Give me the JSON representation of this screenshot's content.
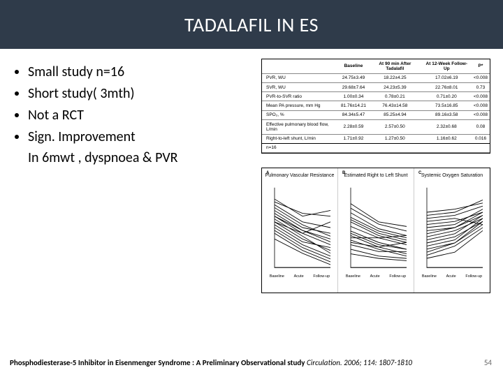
{
  "title": "TADALAFIL IN ES",
  "bullets": {
    "b0": "Small study n=16",
    "b1": "Short study( 3mth)",
    "b2": "Not a RCT",
    "b3": "Sign. Improvement",
    "indent": "In  6mwt , dyspnoea  & PVR"
  },
  "table": {
    "headers": {
      "h0": "",
      "h1": "Baseline",
      "h2": "At 90 min After Tadalafil",
      "h3": "At 12-Week Follow-Up",
      "h4": "P*"
    },
    "rows": {
      "r0": {
        "label": "PVR, WU",
        "c1": "24.75±3.49",
        "c2": "18.22±4.25",
        "c3": "17.02±6.19",
        "c4": "<0.008"
      },
      "r1": {
        "label": "SVR, WU",
        "c1": "29.68±7.64",
        "c2": "24.23±5.39",
        "c3": "22.76±8.01",
        "c4": "0.73"
      },
      "r2": {
        "label": "PVR-to-SVR ratio",
        "c1": "1.00±0.34",
        "c2": "0.78±0.21",
        "c3": "0.71±0.20",
        "c4": "<0.008"
      },
      "r3": {
        "label": "Mean PA pressure, mm Hg",
        "c1": "81.76±14.21",
        "c2": "76.43±14.58",
        "c3": "73.5±16.85",
        "c4": "<0.008"
      },
      "r4": {
        "label": "SPO₂, %",
        "c1": "84.34±5.47",
        "c2": "85.25±4.94",
        "c3": "89.16±3.58",
        "c4": "<0.008"
      },
      "r5": {
        "label": "Effective pulmonary blood flow, L/min",
        "c1": "2.28±0.59",
        "c2": "2.57±0.50",
        "c3": "2.32±0.68",
        "c4": "0.08"
      },
      "r6": {
        "label": "Right-to-left shunt, L/min",
        "c1": "1.71±0.92",
        "c2": "1.27±0.50",
        "c3": "1.16±0.62",
        "c4": "0.016"
      },
      "r7": {
        "label": "n=16",
        "c1": "",
        "c2": "",
        "c3": "",
        "c4": ""
      }
    }
  },
  "charts": {
    "a": {
      "letter": "A",
      "title": "Pulmonary Vascular Resistance",
      "ylabel": "PVR WU",
      "xlabels": {
        "x0": "Baseline",
        "x1": "Acute",
        "x2": "Follow-up"
      },
      "ylim": [
        8,
        36
      ],
      "lines": [
        [
          30,
          24,
          22
        ],
        [
          28,
          22,
          20
        ],
        [
          32,
          26,
          28
        ],
        [
          26,
          20,
          16
        ],
        [
          24,
          18,
          14
        ],
        [
          22,
          16,
          12
        ],
        [
          20,
          14,
          10
        ],
        [
          26,
          21,
          18
        ],
        [
          23,
          17,
          15
        ],
        [
          25,
          19,
          13
        ],
        [
          27,
          21,
          17
        ],
        [
          29,
          23,
          19
        ],
        [
          21,
          15,
          11
        ],
        [
          24,
          20,
          24
        ],
        [
          31,
          27,
          26
        ],
        [
          18,
          13,
          9
        ]
      ],
      "line_color": "#000000",
      "line_width": 0.7,
      "axis_color": "#000000",
      "background_color": "#ffffff"
    },
    "b": {
      "letter": "B",
      "title": "Estimated Right to Left Shunt",
      "ylabel": "L/min",
      "xlabels": {
        "x0": "Baseline",
        "x1": "Acute",
        "x2": "Follow-up"
      },
      "ylim": [
        0,
        3.5
      ],
      "lines": [
        [
          2.8,
          2.0,
          1.8
        ],
        [
          2.4,
          1.7,
          1.4
        ],
        [
          2.0,
          1.4,
          1.1
        ],
        [
          1.6,
          1.1,
          0.8
        ],
        [
          1.2,
          0.8,
          0.5
        ],
        [
          2.2,
          1.6,
          1.3
        ],
        [
          1.8,
          1.3,
          1.0
        ],
        [
          1.4,
          0.9,
          0.6
        ],
        [
          1.0,
          0.7,
          0.7
        ],
        [
          2.6,
          1.9,
          1.6
        ],
        [
          0.8,
          0.5,
          0.4
        ],
        [
          1.5,
          1.0,
          0.8
        ],
        [
          1.1,
          0.9,
          1.1
        ],
        [
          2.1,
          1.5,
          1.2
        ],
        [
          1.3,
          1.3,
          1.4
        ],
        [
          0.6,
          0.4,
          0.3
        ]
      ],
      "line_color": "#000000",
      "line_width": 0.7,
      "axis_color": "#000000",
      "background_color": "#ffffff"
    },
    "c": {
      "letter": "C",
      "title": "Systemic Oxygen Saturation",
      "ylabel": "%",
      "xlabels": {
        "x0": "Baseline",
        "x1": "Acute",
        "x2": "Follow-up"
      },
      "ylim": [
        72,
        98
      ],
      "lines": [
        [
          88,
          89,
          92
        ],
        [
          86,
          87,
          90
        ],
        [
          84,
          85,
          89
        ],
        [
          82,
          84,
          88
        ],
        [
          80,
          82,
          87
        ],
        [
          78,
          80,
          86
        ],
        [
          76,
          79,
          85
        ],
        [
          90,
          91,
          93
        ],
        [
          85,
          86,
          91
        ],
        [
          83,
          85,
          90
        ],
        [
          81,
          83,
          89
        ],
        [
          79,
          81,
          88
        ],
        [
          77,
          80,
          87
        ],
        [
          87,
          88,
          86
        ],
        [
          89,
          90,
          94
        ],
        [
          75,
          77,
          84
        ]
      ],
      "line_color": "#000000",
      "line_width": 0.7,
      "axis_color": "#000000",
      "background_color": "#ffffff"
    }
  },
  "footer": {
    "ref_title": "Phosphodiesterase-5 Inhibitor in Eisenmenger Syndrome : A Preliminary Observational study ",
    "ref_cite": " Circulation. 2006; 114: 1807-1810"
  },
  "page_number": "54",
  "palette": {
    "title_bg": "#2f3b4a",
    "title_fg": "#ffffff",
    "body_fg": "#000000",
    "page_bg": "#ffffff",
    "border": "#000000"
  }
}
